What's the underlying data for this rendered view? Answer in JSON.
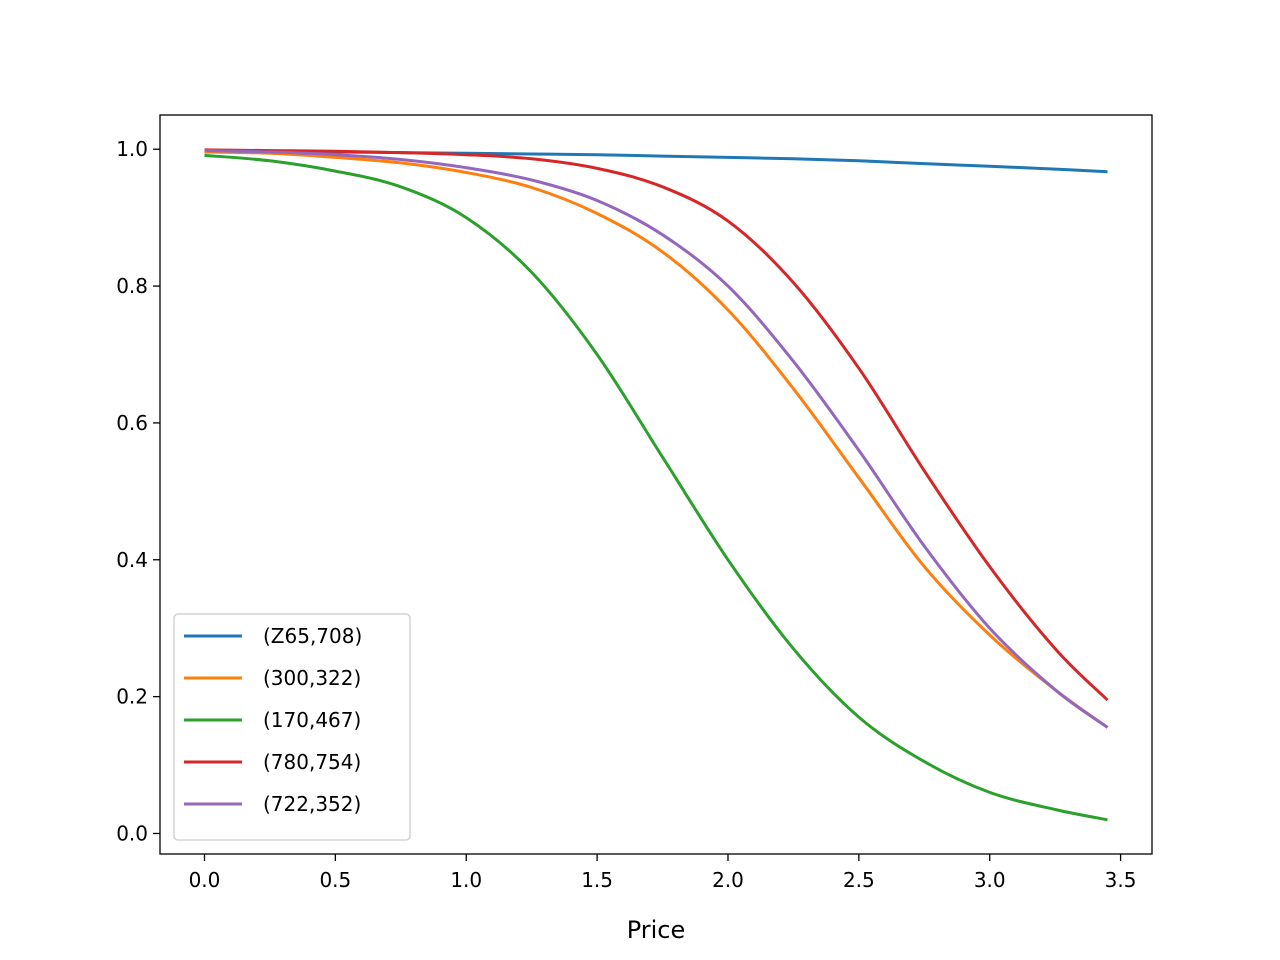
{
  "chart_data": {
    "type": "line",
    "title": "",
    "xlabel": "Price",
    "ylabel": "",
    "xlim": [
      -0.17,
      3.62
    ],
    "ylim": [
      -0.03,
      1.05
    ],
    "x_ticks": [
      0.0,
      0.5,
      1.0,
      1.5,
      2.0,
      2.5,
      3.0,
      3.5
    ],
    "x_tick_labels": [
      "0.0",
      "0.5",
      "1.0",
      "1.5",
      "2.0",
      "2.5",
      "3.0",
      "3.5"
    ],
    "y_ticks": [
      0.0,
      0.2,
      0.4,
      0.6,
      0.8,
      1.0
    ],
    "y_tick_labels": [
      "0.0",
      "0.2",
      "0.4",
      "0.6",
      "0.8",
      "1.0"
    ],
    "grid": false,
    "legend_position": "lower-left",
    "x": [
      0.0,
      0.25,
      0.5,
      0.75,
      1.0,
      1.25,
      1.5,
      1.75,
      2.0,
      2.25,
      2.5,
      2.75,
      3.0,
      3.25,
      3.45
    ],
    "series": [
      {
        "name": "(Z65,708)",
        "color": "#1f77b4",
        "values": [
          0.998,
          0.997,
          0.996,
          0.995,
          0.994,
          0.993,
          0.992,
          0.99,
          0.988,
          0.986,
          0.983,
          0.979,
          0.975,
          0.971,
          0.967
        ]
      },
      {
        "name": "(300,322)",
        "color": "#ff7f0e",
        "values": [
          0.996,
          0.994,
          0.988,
          0.98,
          0.966,
          0.944,
          0.906,
          0.85,
          0.765,
          0.65,
          0.52,
          0.39,
          0.29,
          0.21,
          0.155
        ]
      },
      {
        "name": "(170,467)",
        "color": "#2ca02c",
        "values": [
          0.991,
          0.983,
          0.968,
          0.945,
          0.9,
          0.82,
          0.7,
          0.55,
          0.4,
          0.27,
          0.17,
          0.105,
          0.06,
          0.035,
          0.02
        ]
      },
      {
        "name": "(780,754)",
        "color": "#d62728",
        "values": [
          0.999,
          0.998,
          0.997,
          0.995,
          0.992,
          0.986,
          0.972,
          0.945,
          0.895,
          0.805,
          0.68,
          0.53,
          0.39,
          0.27,
          0.195
        ]
      },
      {
        "name": "(722,352)",
        "color": "#9467bd",
        "values": [
          0.998,
          0.996,
          0.992,
          0.985,
          0.973,
          0.955,
          0.925,
          0.875,
          0.8,
          0.69,
          0.56,
          0.42,
          0.3,
          0.21,
          0.155
        ]
      }
    ]
  }
}
